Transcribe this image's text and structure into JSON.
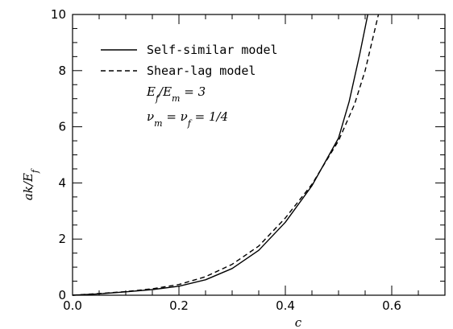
{
  "chart_data": {
    "type": "line",
    "xlabel": "c",
    "ylabel": "ak/E_f",
    "xlim": [
      0.0,
      0.7
    ],
    "ylim": [
      0,
      10
    ],
    "x_ticks": [
      "0.0",
      "0.2",
      "0.4",
      "0.6"
    ],
    "y_ticks": [
      "0",
      "2",
      "4",
      "6",
      "8",
      "10"
    ],
    "grid": false,
    "legend_position": "top-left",
    "annotations": [
      "E_f/E_m = 3",
      "ν_m = ν_f = 1/4"
    ],
    "series": [
      {
        "name": "Self-similar model",
        "line_style": "solid",
        "x": [
          0.0,
          0.05,
          0.1,
          0.15,
          0.2,
          0.25,
          0.3,
          0.35,
          0.4,
          0.45,
          0.5,
          0.52,
          0.54,
          0.555
        ],
        "y": [
          0.0,
          0.05,
          0.12,
          0.2,
          0.32,
          0.55,
          0.95,
          1.6,
          2.6,
          3.9,
          5.6,
          6.9,
          8.6,
          10.0
        ]
      },
      {
        "name": "Shear-lag model",
        "line_style": "dashed",
        "x": [
          0.0,
          0.05,
          0.1,
          0.15,
          0.2,
          0.25,
          0.3,
          0.35,
          0.4,
          0.45,
          0.5,
          0.53,
          0.55,
          0.575
        ],
        "y": [
          0.0,
          0.06,
          0.13,
          0.23,
          0.38,
          0.66,
          1.1,
          1.75,
          2.75,
          3.95,
          5.5,
          6.8,
          8.0,
          10.0
        ]
      }
    ]
  }
}
